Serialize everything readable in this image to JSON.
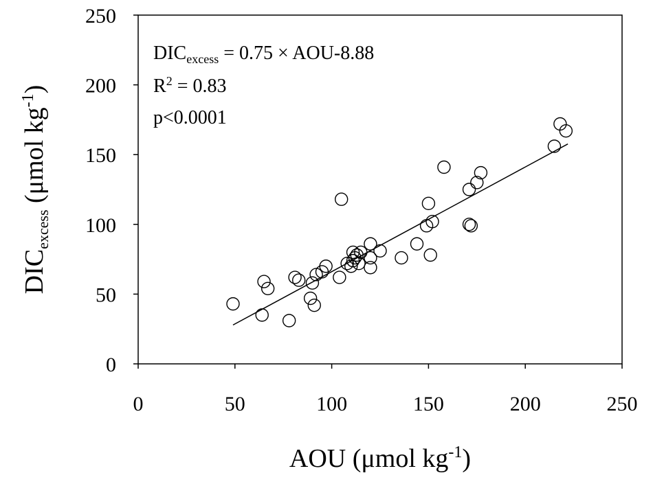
{
  "chart_data": {
    "type": "scatter",
    "xlabel": {
      "main": "AOU (μmol kg",
      "sup": "-1",
      "close": ")"
    },
    "ylabel": {
      "main": "DIC",
      "sub": "excess",
      "rest": " (μmol kg",
      "sup": "-1",
      "close": ")"
    },
    "xlim": [
      0,
      250
    ],
    "ylim": [
      0,
      250
    ],
    "x_ticks": [
      "0",
      "50",
      "100",
      "150",
      "200",
      "250"
    ],
    "y_ticks": [
      "0",
      "50",
      "100",
      "150",
      "200",
      "250"
    ],
    "annotations": {
      "equation": {
        "main": "DIC",
        "sub": "excess",
        "rest": " = 0.75 × AOU-8.88"
      },
      "r2": {
        "main": "R",
        "sup": "2",
        "rest": " = 0.83"
      },
      "p": "p<0.0001"
    },
    "regression": {
      "slope": 0.75,
      "intercept": -8.88,
      "x_range": [
        49,
        222
      ]
    },
    "series": [
      {
        "points": [
          [
            49,
            43
          ],
          [
            64,
            35
          ],
          [
            65,
            59
          ],
          [
            67,
            54
          ],
          [
            78,
            31
          ],
          [
            81,
            62
          ],
          [
            83,
            60
          ],
          [
            89,
            47
          ],
          [
            90,
            58
          ],
          [
            91,
            42
          ],
          [
            92,
            64
          ],
          [
            95,
            66
          ],
          [
            97,
            70
          ],
          [
            104,
            62
          ],
          [
            105,
            118
          ],
          [
            108,
            72
          ],
          [
            110,
            70
          ],
          [
            111,
            74
          ],
          [
            111,
            80
          ],
          [
            112,
            76
          ],
          [
            113,
            78
          ],
          [
            114,
            72
          ],
          [
            115,
            80
          ],
          [
            120,
            86
          ],
          [
            120,
            76
          ],
          [
            120,
            69
          ],
          [
            125,
            81
          ],
          [
            136,
            76
          ],
          [
            144,
            86
          ],
          [
            149,
            99
          ],
          [
            150,
            115
          ],
          [
            151,
            78
          ],
          [
            152,
            102
          ],
          [
            158,
            141
          ],
          [
            171,
            100
          ],
          [
            171,
            125
          ],
          [
            172,
            99
          ],
          [
            175,
            130
          ],
          [
            177,
            137
          ],
          [
            215,
            156
          ],
          [
            218,
            172
          ],
          [
            221,
            167
          ]
        ]
      }
    ]
  }
}
